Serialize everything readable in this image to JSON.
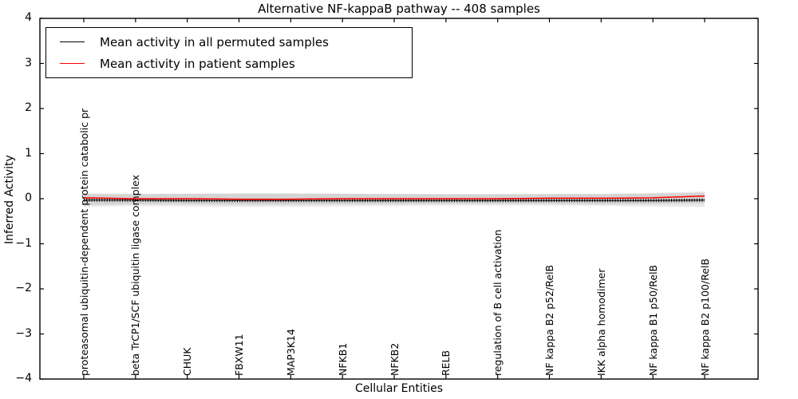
{
  "figure": {
    "kind": "matplotlib-style static plot image",
    "background": "#ffffff",
    "spine_color": "#000000"
  },
  "chart_data": {
    "type": "line",
    "title": "Alternative NF-kappaB pathway -- 408 samples",
    "xlabel": "Cellular Entities",
    "ylabel": "Inferred Activity",
    "ylim": [
      -4,
      4
    ],
    "yticks": [
      4,
      3,
      2,
      1,
      0,
      -1,
      -2,
      -3,
      -4
    ],
    "grid": false,
    "legend_position": "upper left",
    "categories": [
      "proteasomal ubiquitin-dependent protein catabolic pr",
      "beta TrCP1/SCF ubiquitin ligase complex",
      "CHUK",
      "FBXW11",
      "MAP3K14",
      "NFKB1",
      "NFKB2",
      "RELB",
      "regulation of B cell activation",
      "NF kappa B2 p52/RelB",
      "IKK alpha homodimer",
      "NF kappa B1 p50/RelB",
      "NF kappa B2 p100/RelB"
    ],
    "series": [
      {
        "name": "Mean activity in all permuted samples",
        "color": "#000000",
        "marker": "|",
        "values": [
          -0.03,
          -0.03,
          -0.04,
          -0.04,
          -0.04,
          -0.04,
          -0.04,
          -0.04,
          -0.04,
          -0.04,
          -0.04,
          -0.04,
          -0.03
        ]
      },
      {
        "name": "Mean activity in patient samples",
        "color": "#ff0000",
        "marker": "none",
        "values": [
          0.02,
          0.0,
          0.0,
          -0.01,
          -0.01,
          0.0,
          0.0,
          0.0,
          0.0,
          0.01,
          0.01,
          0.02,
          0.06
        ]
      }
    ],
    "bands": [
      {
        "name": "permuted samples std band",
        "fill": "rgba(0,0,0,0.085)",
        "upper": [
          0.1,
          0.1,
          0.11,
          0.12,
          0.12,
          0.11,
          0.1,
          0.1,
          0.1,
          0.1,
          0.1,
          0.11,
          0.13
        ],
        "lower": [
          -0.18,
          -0.16,
          -0.17,
          -0.18,
          -0.18,
          -0.17,
          -0.16,
          -0.15,
          -0.15,
          -0.15,
          -0.16,
          -0.17,
          -0.18
        ]
      },
      {
        "name": "patient samples std band",
        "fill": "rgba(0,0,0,0.085)",
        "upper": [
          0.12,
          0.11,
          0.11,
          0.11,
          0.11,
          0.11,
          0.11,
          0.1,
          0.1,
          0.11,
          0.11,
          0.13,
          0.16
        ],
        "lower": [
          -0.14,
          -0.12,
          -0.12,
          -0.13,
          -0.13,
          -0.12,
          -0.12,
          -0.11,
          -0.11,
          -0.11,
          -0.12,
          -0.12,
          -0.1
        ]
      }
    ]
  },
  "legend": {
    "items": [
      {
        "label": "Mean activity in all permuted samples",
        "color": "#000000"
      },
      {
        "label": "Mean activity in patient samples",
        "color": "#ff0000"
      }
    ]
  }
}
